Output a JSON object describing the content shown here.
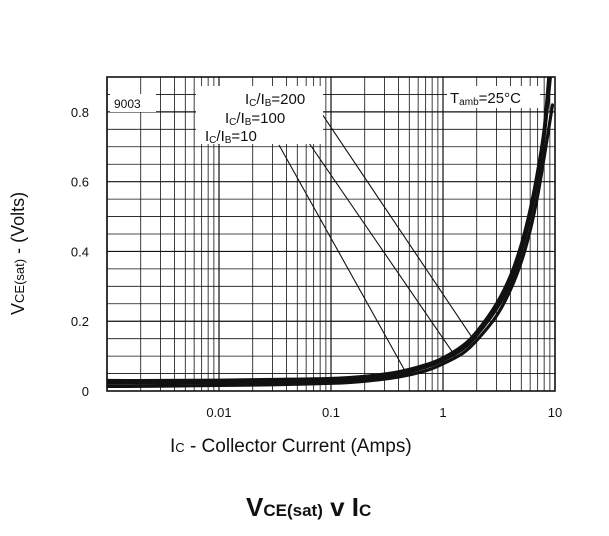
{
  "chart_data": {
    "type": "line",
    "figure_code": "9003",
    "title": {
      "main": "V",
      "sub": "CE(sat)",
      "mid": " v I",
      "sub2": "C"
    },
    "xlabel": {
      "main": "I",
      "sub": "C",
      "rest": " - Collector Current (Amps)"
    },
    "ylabel": {
      "main": "V",
      "sub": "CE(sat)",
      "rest": " - (Volts)"
    },
    "x_scale": "log",
    "xlim": [
      0.001,
      10
    ],
    "ylim": [
      0,
      0.9
    ],
    "x_ticks": [
      {
        "value": 0.01,
        "label": "0.01"
      },
      {
        "value": 0.1,
        "label": "0.1"
      },
      {
        "value": 1,
        "label": "1"
      },
      {
        "value": 10,
        "label": "10"
      }
    ],
    "y_ticks": [
      {
        "value": 0,
        "label": "0"
      },
      {
        "value": 0.2,
        "label": "0.2"
      },
      {
        "value": 0.4,
        "label": "0.4"
      },
      {
        "value": 0.6,
        "label": "0.6"
      },
      {
        "value": 0.8,
        "label": "0.8"
      }
    ],
    "grid": true,
    "condition": {
      "main": "T",
      "sub": "amb",
      "rest": "=25°C"
    },
    "series": [
      {
        "name": "Ic/Ib=200",
        "label": {
          "a": "I",
          "as": "C",
          "b": "/I",
          "bs": "B",
          "c": "=200"
        },
        "points": [
          [
            0.001,
            0.03
          ],
          [
            0.003,
            0.03
          ],
          [
            0.01,
            0.031
          ],
          [
            0.03,
            0.033
          ],
          [
            0.1,
            0.036
          ],
          [
            0.2,
            0.042
          ],
          [
            0.4,
            0.055
          ],
          [
            0.7,
            0.075
          ],
          [
            1,
            0.095
          ],
          [
            1.5,
            0.13
          ],
          [
            2,
            0.17
          ],
          [
            3,
            0.25
          ],
          [
            4,
            0.33
          ],
          [
            5,
            0.42
          ],
          [
            6,
            0.52
          ],
          [
            7,
            0.63
          ],
          [
            8,
            0.75
          ],
          [
            8.8,
            0.9
          ]
        ]
      },
      {
        "name": "Ic/Ib=100",
        "label": {
          "a": "I",
          "as": "C",
          "b": "/I",
          "bs": "B",
          "c": "=100"
        },
        "points": [
          [
            0.001,
            0.022
          ],
          [
            0.003,
            0.023
          ],
          [
            0.01,
            0.024
          ],
          [
            0.03,
            0.026
          ],
          [
            0.1,
            0.029
          ],
          [
            0.2,
            0.035
          ],
          [
            0.4,
            0.048
          ],
          [
            0.7,
            0.068
          ],
          [
            1,
            0.088
          ],
          [
            1.5,
            0.12
          ],
          [
            2,
            0.16
          ],
          [
            3,
            0.235
          ],
          [
            4,
            0.31
          ],
          [
            5,
            0.4
          ],
          [
            6,
            0.5
          ],
          [
            7,
            0.61
          ],
          [
            8,
            0.73
          ],
          [
            9.1,
            0.9
          ]
        ]
      },
      {
        "name": "Ic/Ib=10",
        "label": {
          "a": "I",
          "as": "C",
          "b": "/I",
          "bs": "B",
          "c": "=10"
        },
        "points": [
          [
            0.001,
            0.013
          ],
          [
            0.003,
            0.014
          ],
          [
            0.01,
            0.016
          ],
          [
            0.03,
            0.018
          ],
          [
            0.1,
            0.022
          ],
          [
            0.2,
            0.028
          ],
          [
            0.4,
            0.04
          ],
          [
            0.7,
            0.058
          ],
          [
            1,
            0.078
          ],
          [
            1.5,
            0.108
          ],
          [
            2,
            0.145
          ],
          [
            3,
            0.215
          ],
          [
            4,
            0.29
          ],
          [
            5,
            0.37
          ],
          [
            6,
            0.46
          ],
          [
            7,
            0.56
          ],
          [
            8,
            0.67
          ],
          [
            9.5,
            0.82
          ]
        ]
      }
    ]
  }
}
